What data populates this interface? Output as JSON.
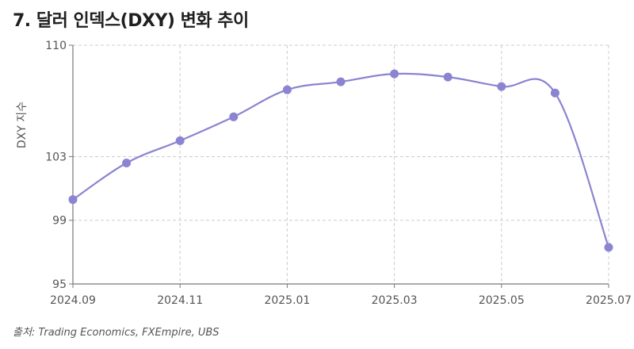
{
  "title": "7. 달러 인덱스(DXY) 변화 추이",
  "source": "출처: Trading Economics, FXEmpire, UBS",
  "colors": {
    "line": "#8a84d1",
    "point": "#8a84d1",
    "grid": "#cccccc",
    "axis": "#777777"
  },
  "chart_data": {
    "type": "line",
    "title": "7. 달러 인덱스(DXY) 변화 추이",
    "xlabel": "",
    "ylabel": "DXY 지수",
    "x": [
      "2024.09",
      "2024.10",
      "2024.11",
      "2024.12",
      "2025.01",
      "2025.02",
      "2025.03",
      "2025.04",
      "2025.05",
      "2025.06",
      "2025.07"
    ],
    "x_tick_labels": [
      "2024.09",
      "2024.11",
      "2025.01",
      "2025.03",
      "2025.05",
      "2025.07"
    ],
    "y_ticks": [
      95,
      99,
      103,
      110
    ],
    "ylim": [
      95,
      110
    ],
    "grid": true,
    "series": [
      {
        "values": [
          100.3,
          102.6,
          104.0,
          105.5,
          107.2,
          107.7,
          108.2,
          108.0,
          107.4,
          107.0,
          97.3
        ]
      }
    ]
  }
}
